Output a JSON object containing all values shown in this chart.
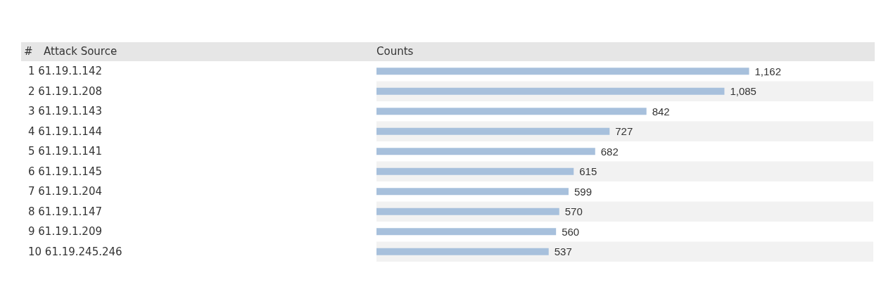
{
  "chart_data": {
    "type": "bar",
    "orientation": "horizontal",
    "xlabel": "Counts",
    "ylabel": "Attack Source",
    "annotations": [
      "#"
    ],
    "categories": [
      "1 61.19.1.142",
      "2 61.19.1.208",
      "3 61.19.1.143",
      "4 61.19.1.144",
      "5 61.19.1.141",
      "6 61.19.1.145",
      "7 61.19.1.204",
      "8 61.19.1.147",
      "9 61.19.1.209",
      "10 61.19.245.246"
    ],
    "values": [
      1162,
      1085,
      842,
      727,
      682,
      615,
      599,
      570,
      560,
      537
    ],
    "value_labels": [
      "1,162",
      "1,085",
      "842",
      "727",
      "682",
      "615",
      "599",
      "570",
      "560",
      "537"
    ],
    "color": "#a7c0dc"
  }
}
